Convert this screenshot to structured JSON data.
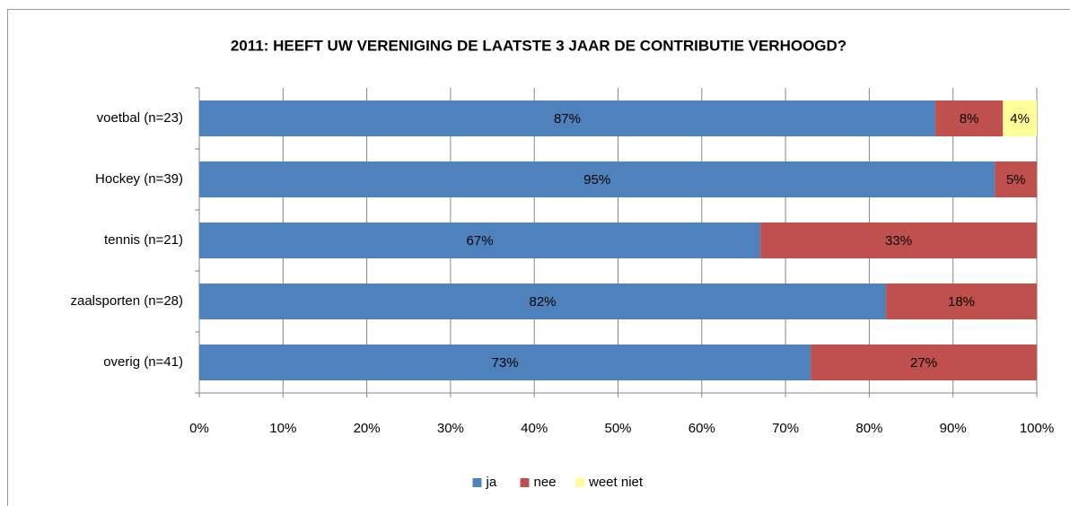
{
  "chart_data": {
    "type": "bar",
    "orientation": "horizontal",
    "stacked": true,
    "percent": true,
    "title": "2011: HEEFT UW VERENIGING DE LAATSTE 3 JAAR DE CONTRIBUTIE VERHOOGD?",
    "categories": [
      "voetbal (n=23)",
      "Hockey (n=39)",
      "tennis (n=21)",
      "zaalsporten (n=28)",
      "overig (n=41)"
    ],
    "series": [
      {
        "name": "ja",
        "color": "#4f81bd",
        "values": [
          87,
          95,
          67,
          82,
          73
        ],
        "value_labels": [
          "87%",
          "95%",
          "67%",
          "82%",
          "73%"
        ]
      },
      {
        "name": "nee",
        "color": "#c0504d",
        "values": [
          8,
          5,
          33,
          18,
          27
        ],
        "value_labels": [
          "8%",
          "5%",
          "33%",
          "18%",
          "27%"
        ]
      },
      {
        "name": "weet niet",
        "color": "#ffff99",
        "values": [
          4,
          null,
          null,
          null,
          null
        ],
        "value_labels": [
          "4%",
          null,
          null,
          null,
          null
        ]
      }
    ],
    "xlim": [
      0,
      100
    ],
    "xticks": [
      {
        "value": 0,
        "label": "0%"
      },
      {
        "value": 10,
        "label": "10%"
      },
      {
        "value": 20,
        "label": "20%"
      },
      {
        "value": 30,
        "label": "30%"
      },
      {
        "value": 40,
        "label": "40%"
      },
      {
        "value": 50,
        "label": "50%"
      },
      {
        "value": 60,
        "label": "60%"
      },
      {
        "value": 70,
        "label": "70%"
      },
      {
        "value": 80,
        "label": "80%"
      },
      {
        "value": 90,
        "label": "90%"
      },
      {
        "value": 100,
        "label": "100%"
      }
    ],
    "grid": true,
    "legend": "bottom"
  }
}
